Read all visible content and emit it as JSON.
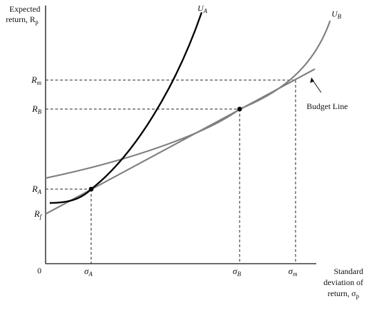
{
  "axes": {
    "y_label_line1": "Expected",
    "y_label_line2": "return, R",
    "y_label_sub": "p",
    "x_label_line1": "Standard",
    "x_label_line2": "deviation of",
    "x_label_line3": "return, σ",
    "x_label_sub": "p",
    "origin": "0"
  },
  "y_ticks": [
    {
      "base": "R",
      "sub": "m"
    },
    {
      "base": "R",
      "sub": "B"
    },
    {
      "base": "R",
      "sub": "A"
    },
    {
      "base": "R",
      "sub": "f"
    }
  ],
  "x_ticks": [
    {
      "base": "σ",
      "sub": "A"
    },
    {
      "base": "σ",
      "sub": "B"
    },
    {
      "base": "σ",
      "sub": "m"
    }
  ],
  "curves": {
    "ua": {
      "base": "U",
      "sub": "A"
    },
    "ub": {
      "base": "U",
      "sub": "B"
    },
    "budget_line": "Budget Line"
  }
}
